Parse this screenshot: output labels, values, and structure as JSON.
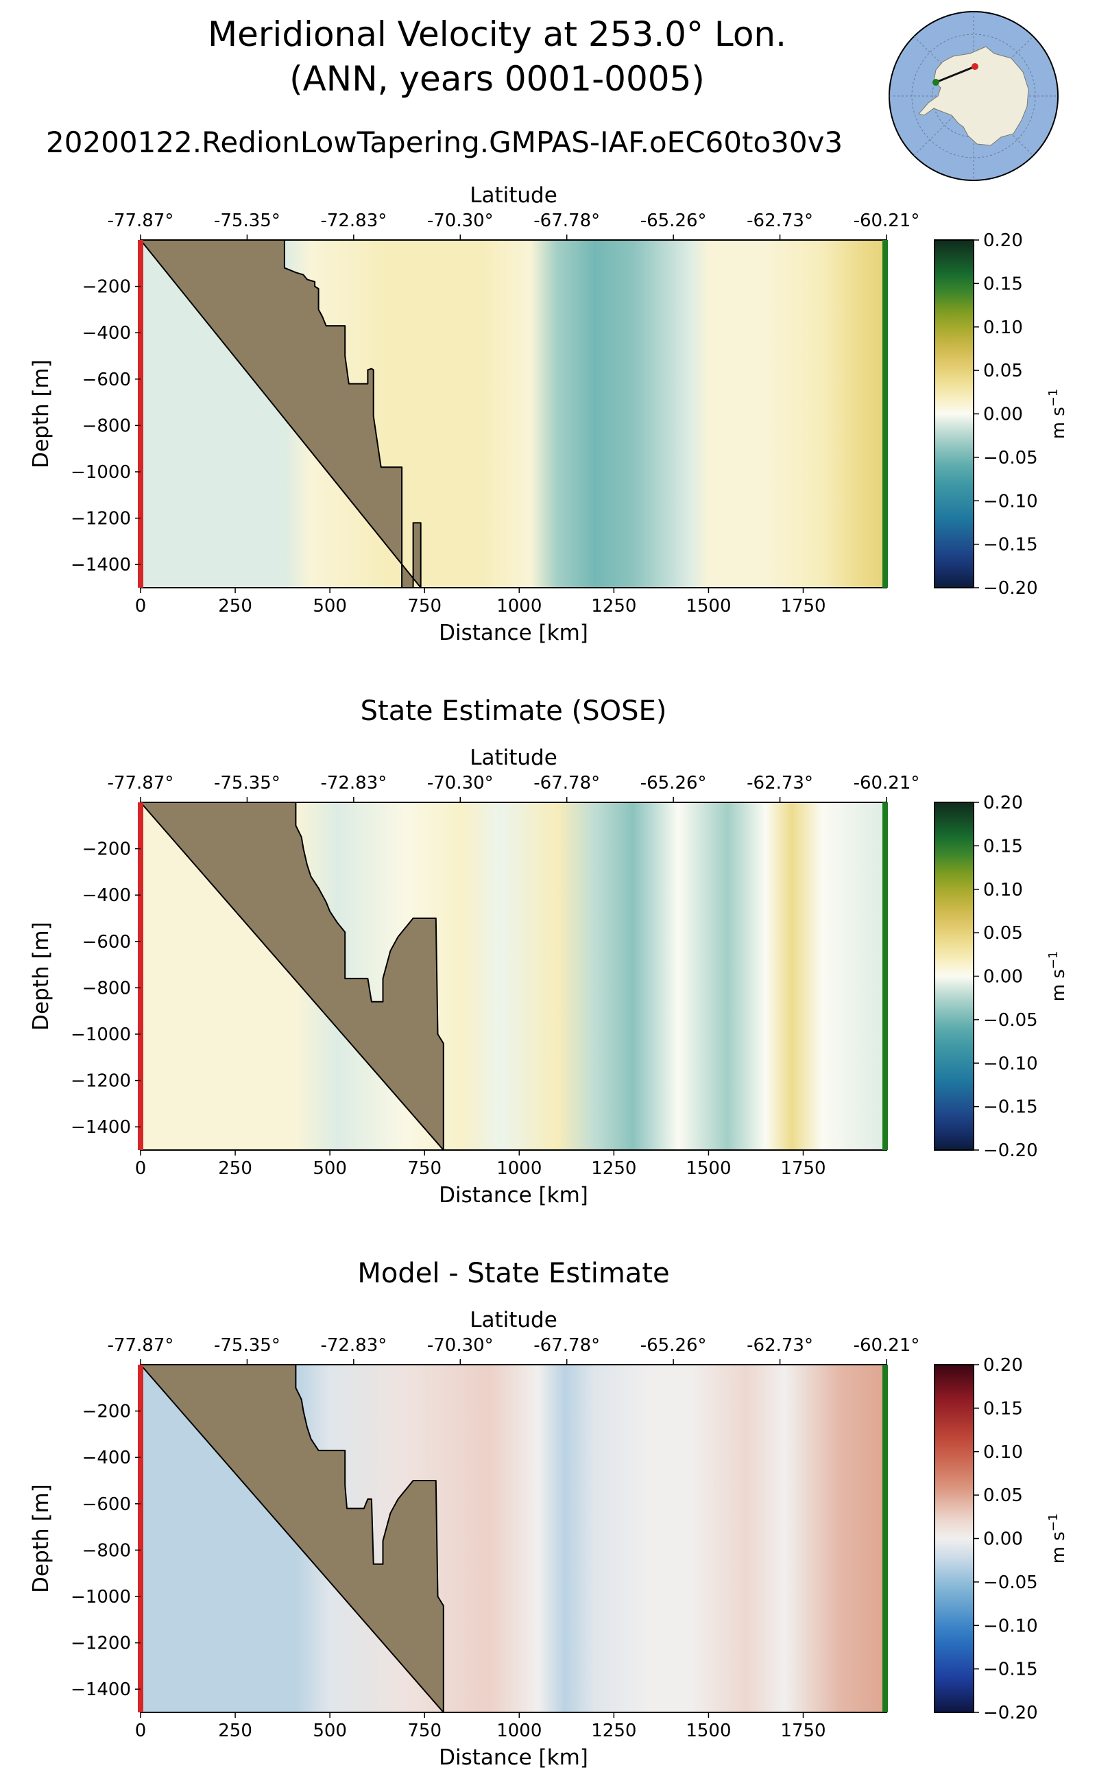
{
  "figure": {
    "title_line1": "Meridional Velocity at 253.0° Lon.",
    "title_line2": "(ANN, years 0001-0005)",
    "run_name": "20200122.RedionLowTapering.GMPAS-IAF.oEC60to30v3"
  },
  "colors": {
    "land": "#8e7f63",
    "start_marker": "#d62728",
    "end_marker": "#1e7a1e",
    "map_ocean": "#92b3dd",
    "map_land": "#f0ecdc"
  },
  "inset_map": {
    "name": "antarctic-locator-map",
    "projection": "south-polar-stereographic"
  },
  "chart_data": [
    {
      "type": "heatmap",
      "panel": "model",
      "title": "",
      "xlabel": "Distance [km]",
      "ylabel": "Depth [m]",
      "top_xlabel": "Latitude",
      "colorbar_label": "m s",
      "colorbar_exponent": "−1",
      "colormap": "teal-white-olive",
      "x_ticks": [
        "0",
        "250",
        "500",
        "750",
        "1000",
        "1250",
        "1500",
        "1750"
      ],
      "y_ticks": [
        "−200",
        "−400",
        "−600",
        "−800",
        "−1000",
        "−1200",
        "−1400"
      ],
      "lat_ticks": [
        "-77.87°",
        "-75.35°",
        "-72.83°",
        "-70.30°",
        "-67.78°",
        "-65.26°",
        "-62.73°",
        "-60.21°"
      ],
      "cbar_ticks": [
        "0.20",
        "0.15",
        "0.10",
        "0.05",
        "0.00",
        "−0.05",
        "−0.10",
        "−0.15",
        "−0.20"
      ],
      "xlim": [
        0,
        1970
      ],
      "ylim": [
        -1500,
        0
      ],
      "vlim": [
        -0.2,
        0.2
      ],
      "columns": [
        {
          "x": 380,
          "v": -0.01
        },
        {
          "x": 450,
          "v": 0.01
        },
        {
          "x": 650,
          "v": 0.02
        },
        {
          "x": 900,
          "v": 0.02
        },
        {
          "x": 1030,
          "v": 0.01
        },
        {
          "x": 1100,
          "v": -0.03
        },
        {
          "x": 1200,
          "v": -0.05
        },
        {
          "x": 1300,
          "v": -0.04
        },
        {
          "x": 1450,
          "v": -0.01
        },
        {
          "x": 1500,
          "v": 0.01
        },
        {
          "x": 1650,
          "v": 0.01
        },
        {
          "x": 1800,
          "v": 0.02
        },
        {
          "x": 1900,
          "v": 0.04
        },
        {
          "x": 1970,
          "v": 0.05
        }
      ],
      "bathymetry": [
        [
          0,
          0
        ],
        [
          380,
          0
        ],
        [
          380,
          -120
        ],
        [
          395,
          -130
        ],
        [
          410,
          -140
        ],
        [
          430,
          -150
        ],
        [
          440,
          -170
        ],
        [
          460,
          -180
        ],
        [
          460,
          -200
        ],
        [
          470,
          -210
        ],
        [
          470,
          -300
        ],
        [
          480,
          -330
        ],
        [
          490,
          -370
        ],
        [
          540,
          -370
        ],
        [
          540,
          -500
        ],
        [
          550,
          -620
        ],
        [
          600,
          -620
        ],
        [
          600,
          -560
        ],
        [
          610,
          -555
        ],
        [
          615,
          -560
        ],
        [
          615,
          -760
        ],
        [
          635,
          -980
        ],
        [
          690,
          -980
        ],
        [
          690,
          -1500
        ],
        [
          720,
          -1500
        ],
        [
          720,
          -1220
        ],
        [
          740,
          -1220
        ],
        [
          740,
          -1500
        ]
      ]
    },
    {
      "type": "heatmap",
      "panel": "sose",
      "title": "State Estimate (SOSE)",
      "xlabel": "Distance [km]",
      "ylabel": "Depth [m]",
      "top_xlabel": "Latitude",
      "colorbar_label": "m s",
      "colorbar_exponent": "−1",
      "colormap": "teal-white-olive",
      "x_ticks": [
        "0",
        "250",
        "500",
        "750",
        "1000",
        "1250",
        "1500",
        "1750"
      ],
      "y_ticks": [
        "−200",
        "−400",
        "−600",
        "−800",
        "−1000",
        "−1200",
        "−1400"
      ],
      "lat_ticks": [
        "-77.87°",
        "-75.35°",
        "-72.83°",
        "-70.30°",
        "-67.78°",
        "-65.26°",
        "-62.73°",
        "-60.21°"
      ],
      "cbar_ticks": [
        "0.20",
        "0.15",
        "0.10",
        "0.05",
        "0.00",
        "−0.05",
        "−0.10",
        "−0.15",
        "−0.20"
      ],
      "xlim": [
        0,
        1970
      ],
      "ylim": [
        -1500,
        0
      ],
      "vlim": [
        -0.2,
        0.2
      ],
      "columns": [
        {
          "x": 410,
          "v": 0.01
        },
        {
          "x": 520,
          "v": -0.01
        },
        {
          "x": 700,
          "v": 0.005
        },
        {
          "x": 850,
          "v": 0.015
        },
        {
          "x": 950,
          "v": -0.005
        },
        {
          "x": 1100,
          "v": 0.02
        },
        {
          "x": 1200,
          "v": -0.02
        },
        {
          "x": 1300,
          "v": -0.04
        },
        {
          "x": 1420,
          "v": 0.0
        },
        {
          "x": 1550,
          "v": -0.03
        },
        {
          "x": 1650,
          "v": 0.0
        },
        {
          "x": 1720,
          "v": 0.04
        },
        {
          "x": 1800,
          "v": 0.0
        },
        {
          "x": 1970,
          "v": -0.01
        }
      ],
      "bathymetry": [
        [
          0,
          0
        ],
        [
          410,
          0
        ],
        [
          410,
          -100
        ],
        [
          425,
          -150
        ],
        [
          430,
          -200
        ],
        [
          440,
          -270
        ],
        [
          450,
          -320
        ],
        [
          470,
          -370
        ],
        [
          490,
          -430
        ],
        [
          500,
          -470
        ],
        [
          520,
          -520
        ],
        [
          540,
          -560
        ],
        [
          540,
          -760
        ],
        [
          600,
          -760
        ],
        [
          610,
          -860
        ],
        [
          640,
          -860
        ],
        [
          640,
          -760
        ],
        [
          660,
          -640
        ],
        [
          680,
          -580
        ],
        [
          720,
          -500
        ],
        [
          780,
          -500
        ],
        [
          785,
          -1000
        ],
        [
          800,
          -1040
        ],
        [
          800,
          -1500
        ]
      ]
    },
    {
      "type": "heatmap",
      "panel": "difference",
      "title": "Model - State Estimate",
      "xlabel": "Distance [km]",
      "ylabel": "Depth [m]",
      "top_xlabel": "Latitude",
      "colorbar_label": "m s",
      "colorbar_exponent": "−1",
      "colormap": "blue-white-red",
      "x_ticks": [
        "0",
        "250",
        "500",
        "750",
        "1000",
        "1250",
        "1500",
        "1750"
      ],
      "y_ticks": [
        "−200",
        "−400",
        "−600",
        "−800",
        "−1000",
        "−1200",
        "−1400"
      ],
      "lat_ticks": [
        "-77.87°",
        "-75.35°",
        "-72.83°",
        "-70.30°",
        "-67.78°",
        "-65.26°",
        "-62.73°",
        "-60.21°"
      ],
      "cbar_ticks": [
        "0.20",
        "0.15",
        "0.10",
        "0.05",
        "0.00",
        "−0.05",
        "−0.10",
        "−0.15",
        "−0.20"
      ],
      "xlim": [
        0,
        1970
      ],
      "ylim": [
        -1500,
        0
      ],
      "vlim": [
        -0.2,
        0.2
      ],
      "columns": [
        {
          "x": 410,
          "v": -0.03
        },
        {
          "x": 500,
          "v": -0.01
        },
        {
          "x": 700,
          "v": 0.01
        },
        {
          "x": 920,
          "v": 0.025
        },
        {
          "x": 1050,
          "v": 0.0
        },
        {
          "x": 1120,
          "v": -0.03
        },
        {
          "x": 1200,
          "v": -0.01
        },
        {
          "x": 1350,
          "v": 0.0
        },
        {
          "x": 1450,
          "v": 0.0
        },
        {
          "x": 1600,
          "v": 0.02
        },
        {
          "x": 1700,
          "v": 0.0
        },
        {
          "x": 1850,
          "v": 0.04
        },
        {
          "x": 1970,
          "v": 0.05
        }
      ],
      "bathymetry": [
        [
          0,
          0
        ],
        [
          410,
          0
        ],
        [
          410,
          -100
        ],
        [
          425,
          -150
        ],
        [
          430,
          -200
        ],
        [
          440,
          -270
        ],
        [
          450,
          -320
        ],
        [
          470,
          -370
        ],
        [
          540,
          -370
        ],
        [
          540,
          -520
        ],
        [
          545,
          -620
        ],
        [
          590,
          -620
        ],
        [
          600,
          -580
        ],
        [
          610,
          -580
        ],
        [
          615,
          -860
        ],
        [
          640,
          -860
        ],
        [
          640,
          -760
        ],
        [
          660,
          -640
        ],
        [
          680,
          -580
        ],
        [
          720,
          -500
        ],
        [
          780,
          -500
        ],
        [
          785,
          -1000
        ],
        [
          800,
          -1040
        ],
        [
          800,
          -1500
        ]
      ]
    }
  ]
}
